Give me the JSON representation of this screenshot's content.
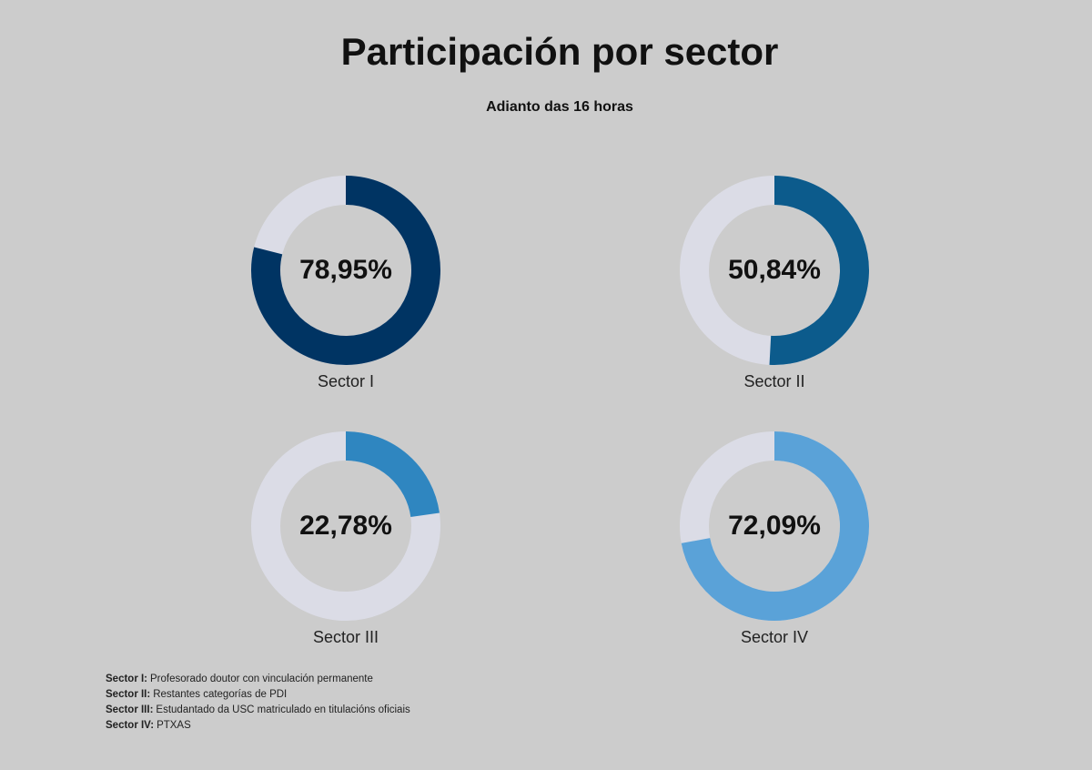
{
  "title": "Participación por sector",
  "subtitle": "Adianto das 16 horas",
  "chart_data": [
    {
      "type": "donut",
      "title": "Sector I",
      "values": [
        78.95
      ],
      "value_labels": [
        "78,95%"
      ],
      "color": "#003463",
      "track_color": "#dbdce6",
      "ylim": [
        0,
        100
      ]
    },
    {
      "type": "donut",
      "title": "Sector II",
      "values": [
        50.84
      ],
      "value_labels": [
        "50,84%"
      ],
      "color": "#0c5b8c",
      "track_color": "#dbdce6",
      "ylim": [
        0,
        100
      ]
    },
    {
      "type": "donut",
      "title": "Sector III",
      "values": [
        22.78
      ],
      "value_labels": [
        "22,78%"
      ],
      "color": "#2f86c0",
      "track_color": "#dbdce6",
      "ylim": [
        0,
        100
      ]
    },
    {
      "type": "donut",
      "title": "Sector IV",
      "values": [
        72.09
      ],
      "value_labels": [
        "72,09%"
      ],
      "color": "#5aa2d8",
      "track_color": "#dbdce6",
      "ylim": [
        0,
        100
      ]
    }
  ],
  "notes": [
    {
      "term": "Sector I:",
      "text": "Profesorado doutor con vinculación permanente"
    },
    {
      "term": "Sector II:",
      "text": "Restantes categorías de PDI"
    },
    {
      "term": "Sector III:",
      "text": "Estudantado da USC matriculado en titulacións oficiais"
    },
    {
      "term": "Sector IV:",
      "text": "PTXAS"
    }
  ]
}
